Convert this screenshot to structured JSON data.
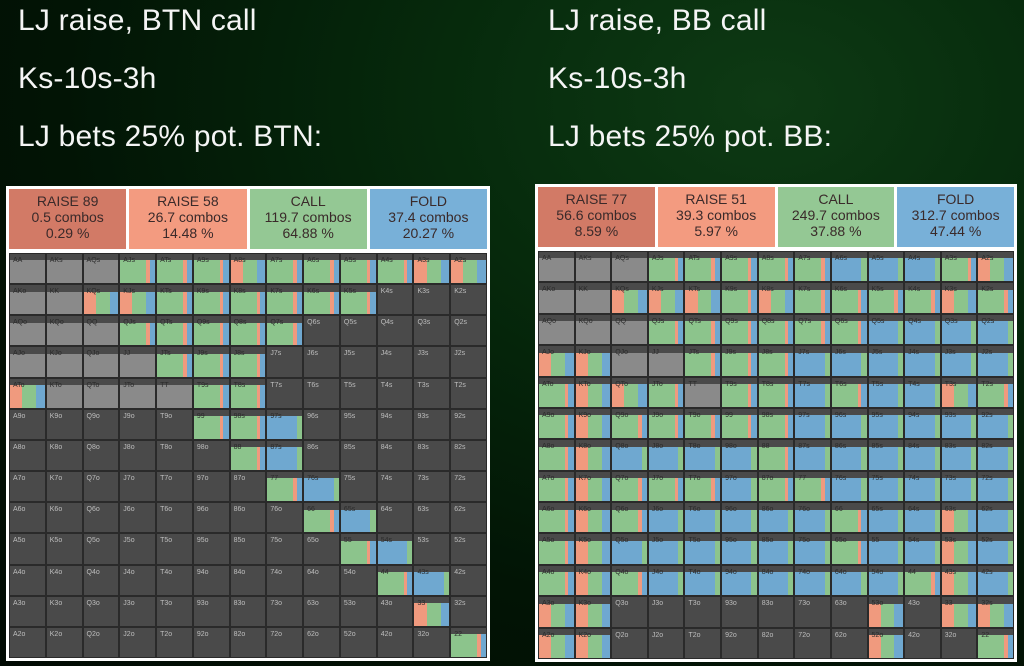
{
  "colors": {
    "raise_big": "#c8715e",
    "raise_small": "#f09a7e",
    "call": "#8cc48c",
    "fold": "#6fa8d0",
    "empty": "#4a4a4a",
    "pair_empty": "#8a8a8a"
  },
  "left": {
    "line1": "LJ raise, BTN call",
    "line2": "Ks-10s-3h",
    "line3": "LJ bets 25% pot. BTN:",
    "actions": [
      {
        "name": "RAISE 89",
        "combos": "0.5 combos",
        "pct": "0.29 %",
        "color": "#d27a66"
      },
      {
        "name": "RAISE 58",
        "combos": "26.7 combos",
        "pct": "14.48 %",
        "color": "#f39b80"
      },
      {
        "name": "CALL",
        "combos": "119.7 combos",
        "pct": "64.88 %",
        "color": "#94c894"
      },
      {
        "name": "FOLD",
        "combos": "37.4 combos",
        "pct": "20.27 %",
        "color": "#78b0d8"
      }
    ]
  },
  "right": {
    "line1": "LJ raise, BB call",
    "line2": "Ks-10s-3h",
    "line3": "LJ bets 25% pot. BB:",
    "actions": [
      {
        "name": "RAISE 77",
        "combos": "56.6 combos",
        "pct": "8.59 %",
        "color": "#d27a66"
      },
      {
        "name": "RAISE 51",
        "combos": "39.3 combos",
        "pct": "5.97 %",
        "color": "#f39b80"
      },
      {
        "name": "CALL",
        "combos": "249.7 combos",
        "pct": "37.88 %",
        "color": "#94c894"
      },
      {
        "name": "FOLD",
        "combos": "312.7 combos",
        "pct": "47.44 %",
        "color": "#78b0d8"
      }
    ]
  },
  "ranks": [
    "A",
    "K",
    "Q",
    "J",
    "T",
    "9",
    "8",
    "7",
    "6",
    "5",
    "4",
    "3",
    "2"
  ],
  "left_grid_strategy": [
    "nnnCCCRCCCCRR",
    "nnRRCCCCCCMMM",
    "nnnCCCCCMMMMM",
    "nnnnCCCMMMMMM",
    "RnnnnCCMMMMMM",
    "MMMMMCCFMMMMM",
    "MMMMMMCFMMMMM",
    "MMMMMMMCFMMMM",
    "MMMMMMMMCFMMM",
    "MMMMMMMMMCFMM",
    "MMMMMMMMMMCFM",
    "MMMMMMMMMMMRM",
    "MMMMMMMMMMMMC"
  ],
  "right_grid_strategy": [
    "nnnCCCCCFFFCR",
    "nnRRRCRCCCCRC",
    "nnnCCCCCCFFFF",
    "RRnnCCCFFFFFF",
    "CRRCnCCFCFFRC",
    "CRCCCCCFFFFFF",
    "CRFFFFCFFFFFF",
    "CRCCCFCCFFFFF",
    "CRCFFFFFCFFRF",
    "CRFFFFFFCFFRF",
    "CRCFFFFFFFCRF",
    "RRMMMMMMMRMRR",
    "RRMMMMMMMRMMC"
  ]
}
